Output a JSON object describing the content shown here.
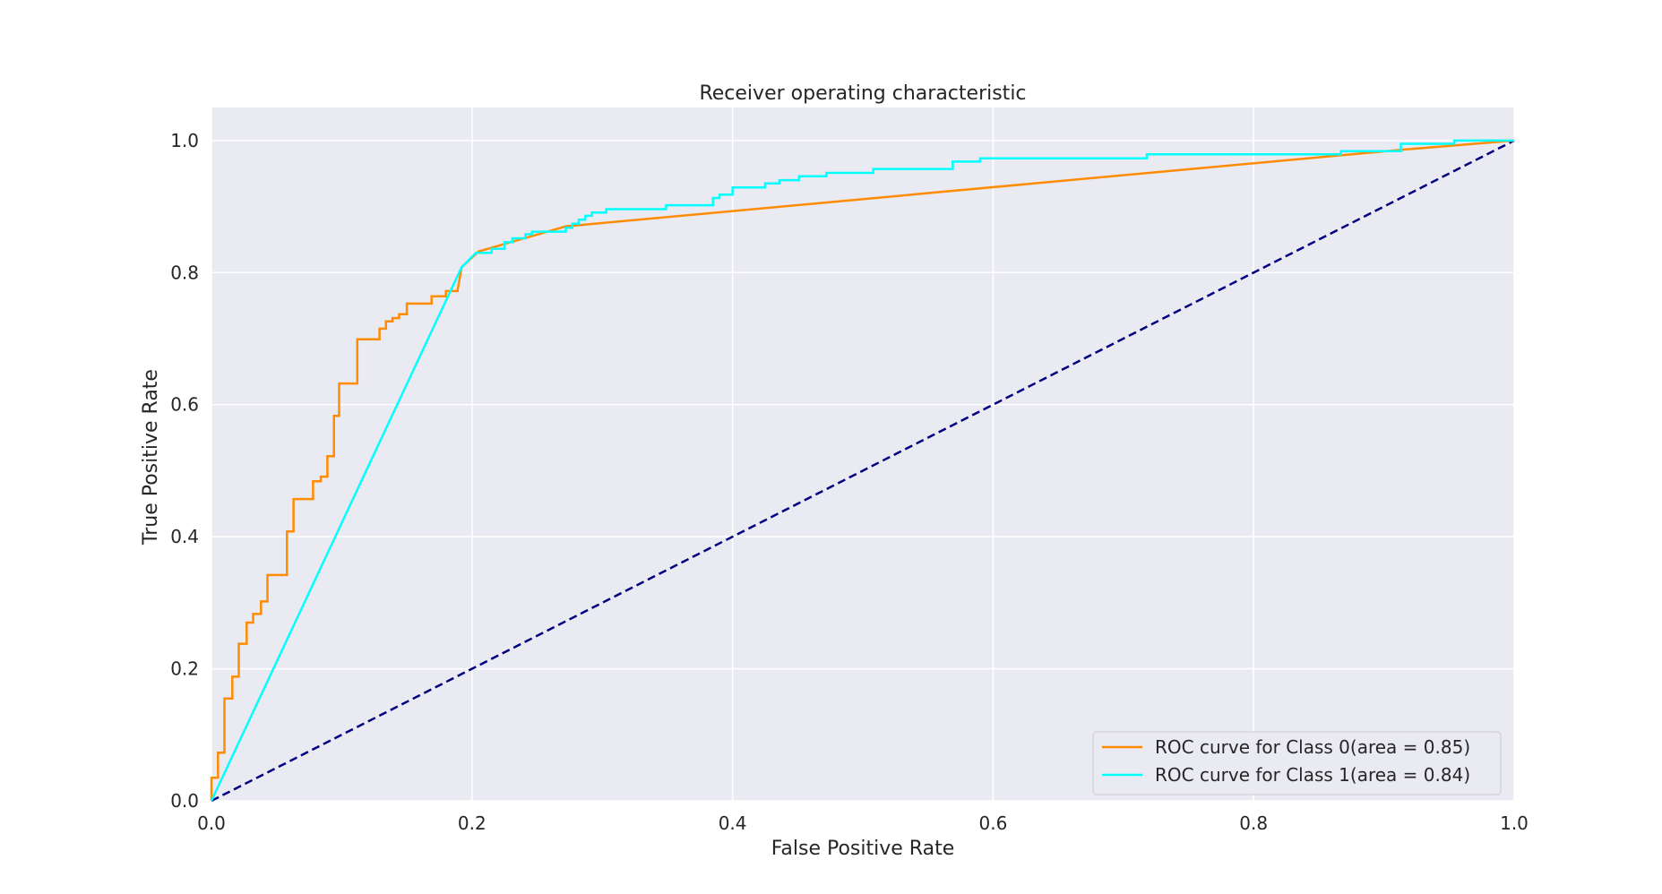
{
  "chart_data": {
    "type": "line",
    "title": "Receiver operating characteristic",
    "xlabel": "False Positive Rate",
    "ylabel": "True Positive Rate",
    "xlim": [
      0.0,
      1.0
    ],
    "ylim": [
      0.0,
      1.05
    ],
    "xticks": [
      0.0,
      0.2,
      0.4,
      0.6,
      0.8,
      1.0
    ],
    "yticks": [
      0.0,
      0.2,
      0.4,
      0.6,
      0.8,
      1.0
    ],
    "xtick_labels": [
      "0.0",
      "0.2",
      "0.4",
      "0.6",
      "0.8",
      "1.0"
    ],
    "ytick_labels": [
      "0.0",
      "0.2",
      "0.4",
      "0.6",
      "0.8",
      "1.0"
    ],
    "grid": true,
    "legend_position": "bottom-right",
    "background_color": "#eaeaf2",
    "series": [
      {
        "name": "ROC curve for Class 0(area = 0.85)",
        "color": "#ff8c00",
        "x": [
          0.0,
          0.0,
          0.005,
          0.005,
          0.01,
          0.01,
          0.016,
          0.016,
          0.021,
          0.021,
          0.027,
          0.027,
          0.032,
          0.032,
          0.038,
          0.038,
          0.043,
          0.043,
          0.048,
          0.048,
          0.058,
          0.058,
          0.063,
          0.063,
          0.078,
          0.078,
          0.084,
          0.084,
          0.089,
          0.089,
          0.094,
          0.094,
          0.098,
          0.098,
          0.103,
          0.103,
          0.112,
          0.112,
          0.129,
          0.129,
          0.134,
          0.134,
          0.139,
          0.139,
          0.144,
          0.144,
          0.15,
          0.15,
          0.155,
          0.155,
          0.169,
          0.169,
          0.18,
          0.18,
          0.189,
          0.189,
          0.192,
          0.205,
          0.272,
          0.913,
          1.0
        ],
        "y": [
          0.0,
          0.035,
          0.035,
          0.073,
          0.073,
          0.155,
          0.155,
          0.188,
          0.188,
          0.238,
          0.238,
          0.27,
          0.27,
          0.283,
          0.283,
          0.302,
          0.302,
          0.342,
          0.342,
          0.342,
          0.342,
          0.408,
          0.408,
          0.457,
          0.457,
          0.484,
          0.484,
          0.491,
          0.491,
          0.522,
          0.522,
          0.583,
          0.583,
          0.632,
          0.632,
          0.632,
          0.632,
          0.699,
          0.699,
          0.715,
          0.715,
          0.726,
          0.726,
          0.731,
          0.731,
          0.737,
          0.737,
          0.753,
          0.753,
          0.753,
          0.753,
          0.764,
          0.764,
          0.772,
          0.772,
          0.774,
          0.808,
          0.832,
          0.87,
          0.986,
          1.0
        ]
      },
      {
        "name": "ROC curve for Class 1(area = 0.84)",
        "color": "#00ffff",
        "x": [
          0.0,
          0.192,
          0.203,
          0.215,
          0.215,
          0.225,
          0.225,
          0.231,
          0.231,
          0.241,
          0.241,
          0.246,
          0.246,
          0.251,
          0.251,
          0.272,
          0.272,
          0.277,
          0.277,
          0.282,
          0.282,
          0.287,
          0.287,
          0.292,
          0.292,
          0.303,
          0.303,
          0.349,
          0.349,
          0.385,
          0.385,
          0.39,
          0.39,
          0.4,
          0.4,
          0.425,
          0.425,
          0.436,
          0.436,
          0.451,
          0.451,
          0.472,
          0.472,
          0.508,
          0.508,
          0.569,
          0.569,
          0.59,
          0.59,
          0.718,
          0.718,
          0.867,
          0.867,
          0.913,
          0.913,
          0.954,
          0.954,
          1.0
        ],
        "y": [
          0.0,
          0.808,
          0.83,
          0.83,
          0.836,
          0.836,
          0.846,
          0.846,
          0.852,
          0.852,
          0.858,
          0.858,
          0.862,
          0.862,
          0.862,
          0.862,
          0.868,
          0.868,
          0.874,
          0.874,
          0.88,
          0.88,
          0.886,
          0.886,
          0.891,
          0.891,
          0.896,
          0.896,
          0.902,
          0.902,
          0.913,
          0.913,
          0.918,
          0.918,
          0.929,
          0.929,
          0.935,
          0.935,
          0.94,
          0.94,
          0.946,
          0.946,
          0.951,
          0.951,
          0.957,
          0.957,
          0.968,
          0.968,
          0.973,
          0.973,
          0.979,
          0.979,
          0.984,
          0.984,
          0.995,
          0.995,
          1.0,
          1.0
        ]
      },
      {
        "name": "",
        "color": "#000080",
        "dashed": true,
        "x": [
          0.0,
          1.0
        ],
        "y": [
          0.0,
          1.0
        ]
      }
    ]
  }
}
